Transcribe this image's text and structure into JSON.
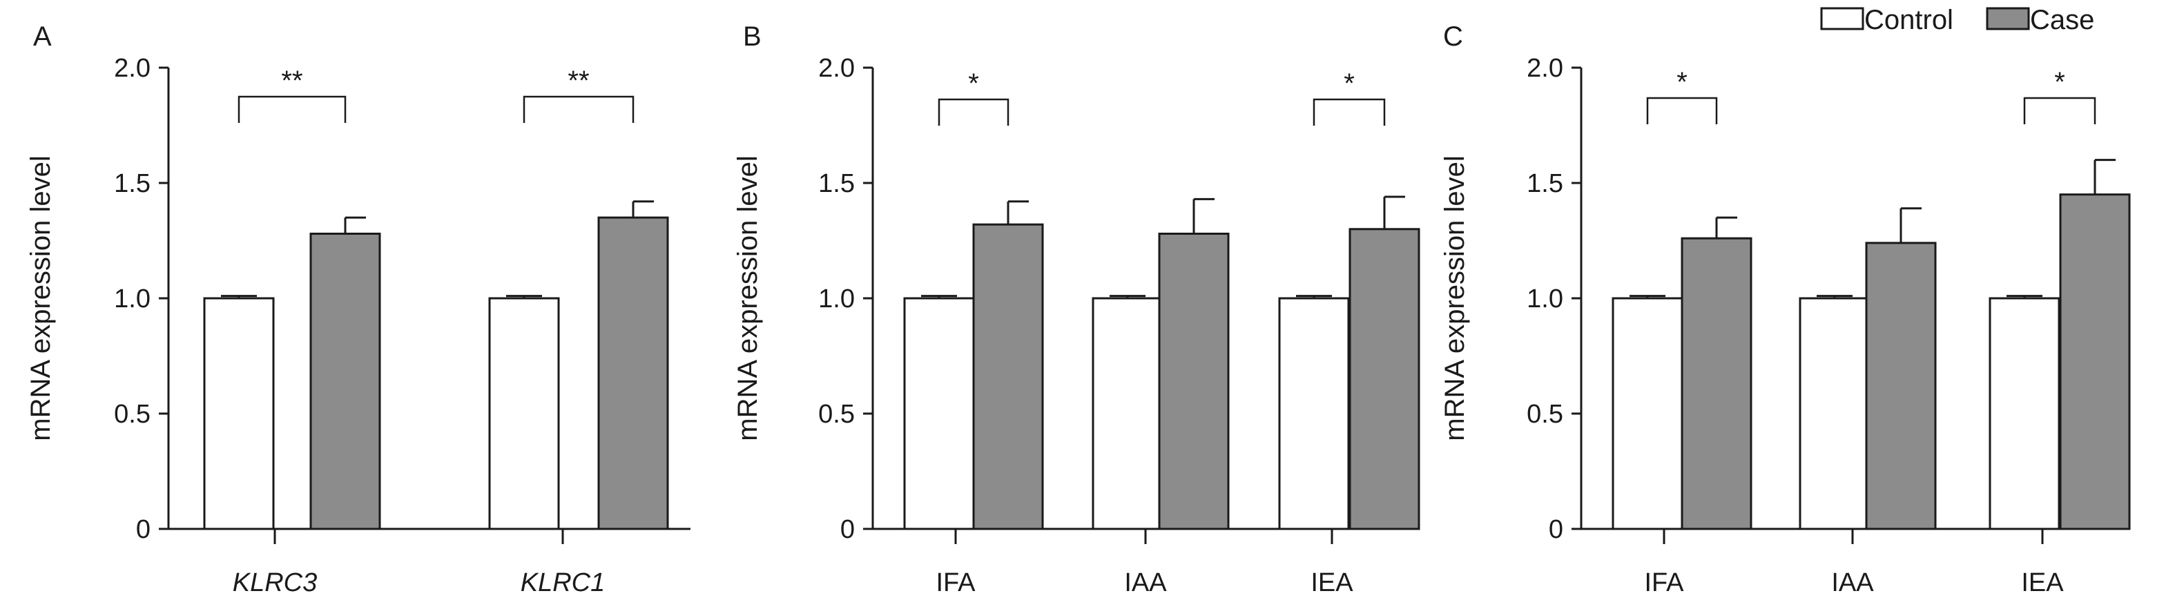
{
  "legend": {
    "items": [
      {
        "label": "Control",
        "color": "#ffffff"
      },
      {
        "label": "Case",
        "color": "#8c8c8c"
      }
    ]
  },
  "colors": {
    "axis": "#1a1a1a",
    "control": "#ffffff",
    "case": "#8c8c8c"
  },
  "chart_data": [
    {
      "type": "bar",
      "panel": "A",
      "ylabel": "mRNA expression level",
      "ylim": [
        0,
        2.0
      ],
      "yticks": [
        "0",
        "0.5",
        "1.0",
        "1.5",
        "2.0"
      ],
      "categories": [
        "KLRC3",
        "KLRC1"
      ],
      "categories_italic": true,
      "series": [
        {
          "name": "Control",
          "values": [
            1.0,
            1.0
          ],
          "errors": [
            0.01,
            0.01
          ]
        },
        {
          "name": "Case",
          "values": [
            1.28,
            1.35
          ],
          "errors": [
            0.07,
            0.07
          ]
        }
      ],
      "significance": [
        "**",
        "**"
      ]
    },
    {
      "type": "bar",
      "panel": "B",
      "ylabel": "mRNA expression level",
      "ylim": [
        0,
        2.0
      ],
      "yticks": [
        "0",
        "0.5",
        "1.0",
        "1.5",
        "2.0"
      ],
      "categories": [
        "IFA",
        "IAA",
        "IEA"
      ],
      "categories_italic": false,
      "series": [
        {
          "name": "Control",
          "values": [
            1.0,
            1.0,
            1.0
          ],
          "errors": [
            0.01,
            0.01,
            0.01
          ]
        },
        {
          "name": "Case",
          "values": [
            1.32,
            1.28,
            1.3
          ],
          "errors": [
            0.1,
            0.15,
            0.14
          ]
        }
      ],
      "significance": [
        "*",
        "",
        "*"
      ]
    },
    {
      "type": "bar",
      "panel": "C",
      "ylabel": "mRNA expression level",
      "ylim": [
        0,
        2.0
      ],
      "yticks": [
        "0",
        "0.5",
        "1.0",
        "1.5",
        "2.0"
      ],
      "categories": [
        "IFA",
        "IAA",
        "IEA"
      ],
      "categories_italic": false,
      "series": [
        {
          "name": "Control",
          "values": [
            1.0,
            1.0,
            1.0
          ],
          "errors": [
            0.01,
            0.01,
            0.01
          ]
        },
        {
          "name": "Case",
          "values": [
            1.26,
            1.24,
            1.45
          ],
          "errors": [
            0.09,
            0.15,
            0.15
          ]
        }
      ],
      "significance": [
        "*",
        "",
        "*"
      ]
    }
  ]
}
